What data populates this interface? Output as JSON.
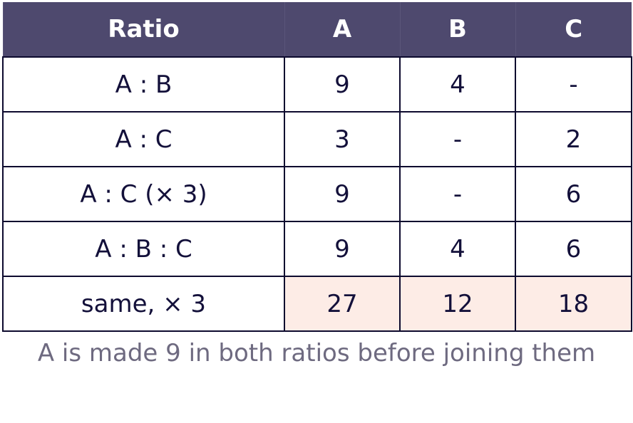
{
  "table": {
    "header": [
      "Ratio",
      "A",
      "B",
      "C"
    ],
    "rows": [
      [
        "A : B",
        "9",
        "4",
        "-"
      ],
      [
        "A : C",
        "3",
        "-",
        "2"
      ],
      [
        "A : C (× 3)",
        "9",
        "-",
        "6"
      ],
      [
        "A : B : C",
        "9",
        "4",
        "6"
      ],
      [
        "same, × 3",
        "27",
        "12",
        "18"
      ]
    ]
  },
  "caption": "A is made 9 in both ratios before joining them"
}
